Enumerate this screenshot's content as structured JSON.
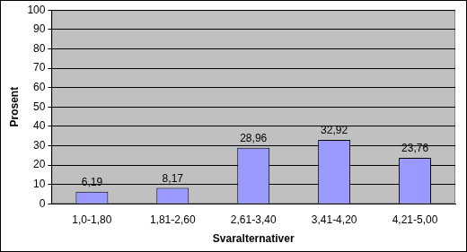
{
  "chart_data": {
    "type": "bar",
    "x_label": "Svaralternativer",
    "y_label": "Prosent",
    "categories": [
      "1,0-1,80",
      "1,81-2,60",
      "2,61-3,40",
      "3,41-4,20",
      "4,21-5,00"
    ],
    "values": [
      6.19,
      8.17,
      28.96,
      32.92,
      23.76
    ],
    "value_labels": [
      "6,19",
      "8,17",
      "28,96",
      "32,92",
      "23,76"
    ],
    "data_labels": true,
    "color": "#9999ff",
    "ylim": [
      0,
      100
    ],
    "yticks": [
      0,
      10,
      20,
      30,
      40,
      50,
      60,
      70,
      80,
      90,
      100
    ],
    "grid": true
  }
}
